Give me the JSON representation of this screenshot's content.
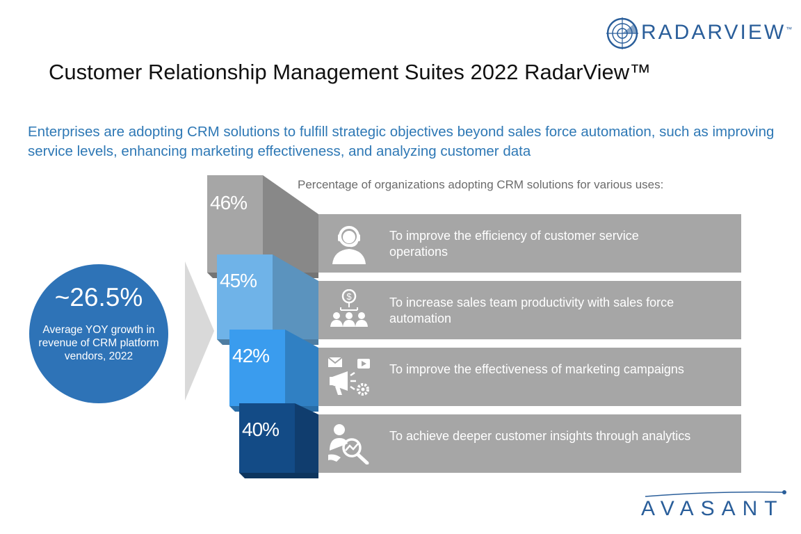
{
  "header": {
    "brand_logo": "RADARVIEW",
    "brand_tm": "™",
    "title": "Customer Relationship Management Suites 2022 RadarView™"
  },
  "subtitle": "Enterprises are adopting CRM solutions to fulfill strategic objectives beyond sales force automation, such as improving service levels, enhancing marketing effectiveness, and analyzing customer data",
  "chart_caption": "Percentage of organizations adopting CRM solutions for various uses:",
  "highlight": {
    "value": "~26.5%",
    "caption": "Average YOY growth in revenue of CRM platform vendors, 2022"
  },
  "uses": [
    {
      "value": "46%",
      "label": "To improve the efficiency of customer service operations",
      "icon": "headset-agent-icon",
      "color": "#a6a6a6"
    },
    {
      "value": "45%",
      "label": "To increase sales team productivity with sales force automation",
      "icon": "sales-team-icon",
      "color": "#6fb3e8"
    },
    {
      "value": "42%",
      "label": "To improve the effectiveness of marketing campaigns",
      "icon": "marketing-megaphone-icon",
      "color": "#3a9cee"
    },
    {
      "value": "40%",
      "label": "To achieve deeper customer insights through analytics",
      "icon": "analytics-magnifier-icon",
      "color": "#134b86"
    }
  ],
  "chart_data": {
    "type": "bar",
    "categories": [
      "To improve the efficiency of customer service operations",
      "To increase sales team productivity with sales force automation",
      "To improve the effectiveness of marketing campaigns",
      "To achieve deeper customer insights through analytics"
    ],
    "values": [
      46,
      45,
      42,
      40
    ],
    "title": "Percentage of organizations adopting CRM solutions for various uses:"
  },
  "footer": {
    "brand_logo": "AVASANT"
  },
  "colors": {
    "accent_blue": "#2e78b5",
    "circle_blue": "#2e73b7",
    "bar_gray": "#a6a6a6"
  }
}
